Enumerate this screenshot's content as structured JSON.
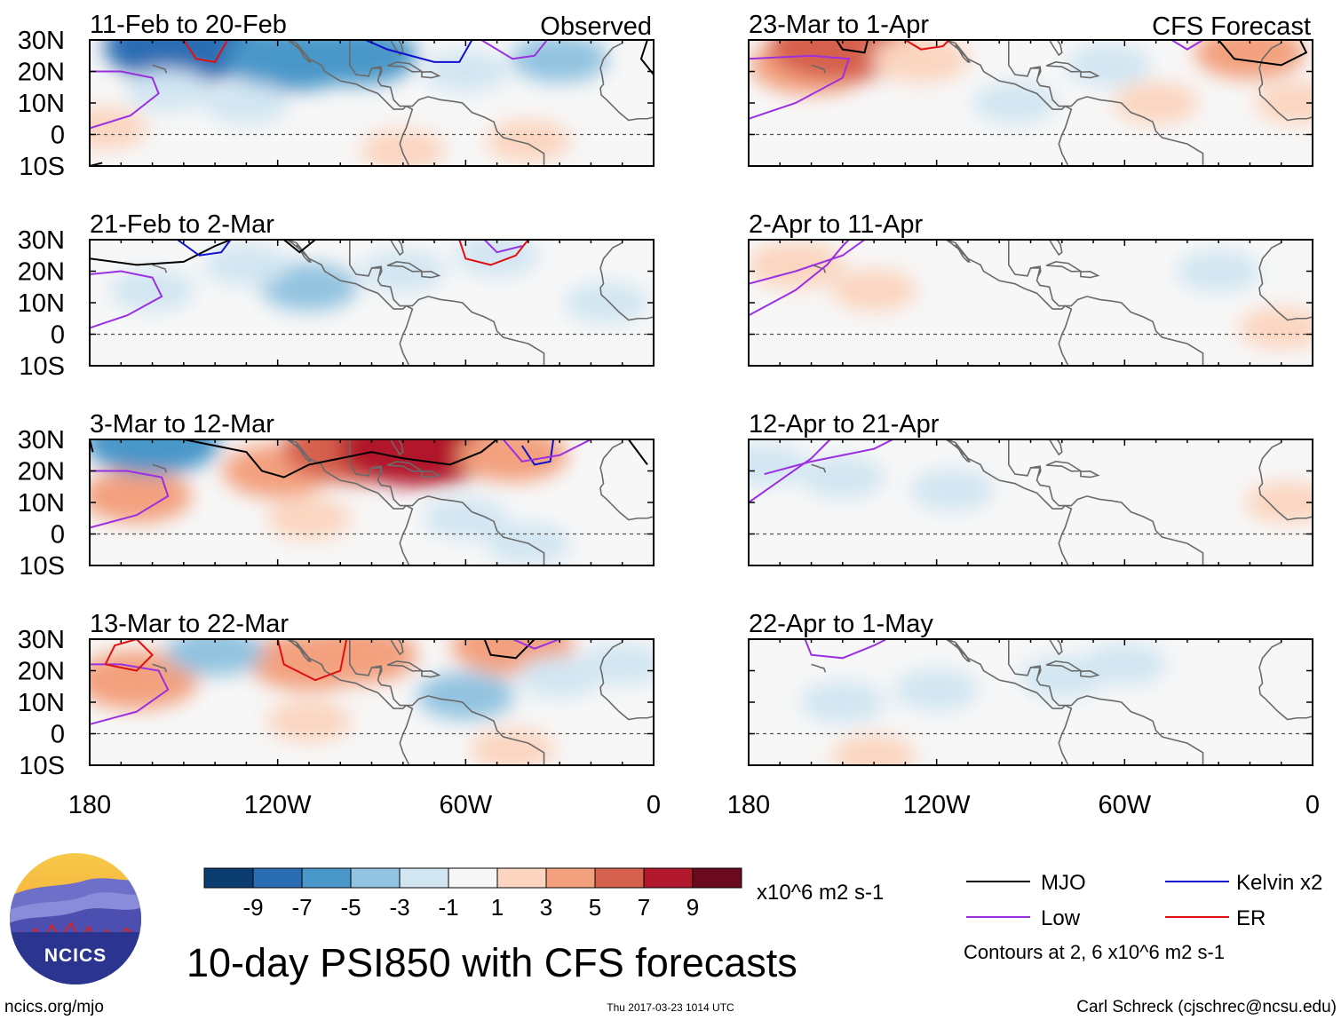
{
  "title": "10-day PSI850 with CFS forecasts",
  "left_column_label": "Observed",
  "right_column_label": "CFS Forecast",
  "lat_ticks": [
    "30N",
    "20N",
    "10N",
    "0",
    "10S"
  ],
  "lon_ticks": [
    "180",
    "120W",
    "60W",
    "0"
  ],
  "colorbar": {
    "unit": "x10^6 m2 s-1",
    "labels": [
      "-9",
      "-7",
      "-5",
      "-3",
      "-1",
      "1",
      "3",
      "5",
      "7",
      "9"
    ],
    "colors": [
      "#0b3d70",
      "#2b6db3",
      "#4a97c9",
      "#92c3e0",
      "#d2e6f2",
      "#f7f7f7",
      "#fbd5c0",
      "#f3a07e",
      "#d5604d",
      "#b2182b",
      "#6b0a1f"
    ]
  },
  "legend": {
    "items": [
      {
        "label": "MJO",
        "color": "#000000"
      },
      {
        "label": "Kelvin x2",
        "color": "#1010d0"
      },
      {
        "label": "Low",
        "color": "#9b30e0"
      },
      {
        "label": "ER",
        "color": "#e01010"
      }
    ],
    "note": "Contours at 2, 6 x10^6 m2 s-1"
  },
  "footer": {
    "logo_text": "NCICS",
    "url": "ncics.org/mjo",
    "timestamp": "Thu 2017-03-23 1014 UTC",
    "credit": "Carl Schreck (cjschrec@ncsu.edu)"
  },
  "chart_data": [
    {
      "type": "heatmap",
      "column": "Observed",
      "title": "11-Feb to 20-Feb",
      "xlim": [
        -180,
        0
      ],
      "ylim": [
        -10,
        30
      ],
      "blobs": [
        {
          "lon": -150,
          "lat": 28,
          "value": -8
        },
        {
          "lon": -115,
          "lat": 24,
          "value": -6
        },
        {
          "lon": -95,
          "lat": 25,
          "value": -5
        },
        {
          "lon": -130,
          "lat": 10,
          "value": -2
        },
        {
          "lon": -60,
          "lat": 20,
          "value": -2
        },
        {
          "lon": -30,
          "lat": 24,
          "value": -3
        },
        {
          "lon": -155,
          "lat": 14,
          "value": -2
        },
        {
          "lon": -175,
          "lat": 2,
          "value": 2
        },
        {
          "lon": -40,
          "lat": -2,
          "value": 2
        },
        {
          "lon": -80,
          "lat": -5,
          "value": 2
        }
      ]
    },
    {
      "type": "heatmap",
      "column": "Observed",
      "title": "21-Feb to 2-Mar",
      "xlim": [
        -180,
        0
      ],
      "ylim": [
        -10,
        30
      ],
      "blobs": [
        {
          "lon": -110,
          "lat": 15,
          "value": -3
        },
        {
          "lon": -130,
          "lat": 22,
          "value": -2
        },
        {
          "lon": -80,
          "lat": 20,
          "value": -2
        },
        {
          "lon": -50,
          "lat": 25,
          "value": -2
        },
        {
          "lon": -160,
          "lat": 14,
          "value": -2
        },
        {
          "lon": -15,
          "lat": 10,
          "value": -2
        }
      ]
    },
    {
      "type": "heatmap",
      "column": "Observed",
      "title": "3-Mar to 12-Mar",
      "xlim": [
        -180,
        0
      ],
      "ylim": [
        -10,
        30
      ],
      "blobs": [
        {
          "lon": -165,
          "lat": 12,
          "value": 4
        },
        {
          "lon": -120,
          "lat": 20,
          "value": 4
        },
        {
          "lon": -95,
          "lat": 27,
          "value": 7
        },
        {
          "lon": -75,
          "lat": 27,
          "value": 8
        },
        {
          "lon": -45,
          "lat": 25,
          "value": 4
        },
        {
          "lon": -160,
          "lat": 29,
          "value": -6
        },
        {
          "lon": -60,
          "lat": 5,
          "value": -2
        },
        {
          "lon": -40,
          "lat": -3,
          "value": -2
        },
        {
          "lon": -110,
          "lat": 5,
          "value": 2
        }
      ]
    },
    {
      "type": "heatmap",
      "column": "Observed",
      "title": "13-Mar to 22-Mar",
      "xlim": [
        -180,
        0
      ],
      "ylim": [
        -10,
        30
      ],
      "blobs": [
        {
          "lon": -165,
          "lat": 17,
          "value": 5
        },
        {
          "lon": -110,
          "lat": 23,
          "value": 5
        },
        {
          "lon": -95,
          "lat": 25,
          "value": 5
        },
        {
          "lon": -45,
          "lat": 28,
          "value": 5
        },
        {
          "lon": -140,
          "lat": 26,
          "value": -3
        },
        {
          "lon": -60,
          "lat": 12,
          "value": -3
        },
        {
          "lon": -30,
          "lat": 18,
          "value": -2
        },
        {
          "lon": -10,
          "lat": 22,
          "value": -2
        },
        {
          "lon": -45,
          "lat": -5,
          "value": 2
        },
        {
          "lon": -110,
          "lat": 4,
          "value": 2
        }
      ]
    },
    {
      "type": "heatmap",
      "column": "CFS Forecast",
      "title": "23-Mar to 1-Apr",
      "xlim": [
        -180,
        0
      ],
      "ylim": [
        -10,
        30
      ],
      "blobs": [
        {
          "lon": -160,
          "lat": 22,
          "value": 5
        },
        {
          "lon": -150,
          "lat": 28,
          "value": 7
        },
        {
          "lon": -125,
          "lat": 24,
          "value": 3
        },
        {
          "lon": -20,
          "lat": 26,
          "value": 4
        },
        {
          "lon": -65,
          "lat": 22,
          "value": -2
        },
        {
          "lon": -95,
          "lat": 10,
          "value": -2
        },
        {
          "lon": -50,
          "lat": 10,
          "value": 2
        },
        {
          "lon": -5,
          "lat": 10,
          "value": 2
        }
      ]
    },
    {
      "type": "heatmap",
      "column": "CFS Forecast",
      "title": "2-Apr to 11-Apr",
      "xlim": [
        -180,
        0
      ],
      "ylim": [
        -10,
        30
      ],
      "blobs": [
        {
          "lon": -165,
          "lat": 22,
          "value": 3
        },
        {
          "lon": -140,
          "lat": 14,
          "value": 2
        },
        {
          "lon": -10,
          "lat": 2,
          "value": 2
        },
        {
          "lon": -30,
          "lat": 20,
          "value": -2
        }
      ]
    },
    {
      "type": "heatmap",
      "column": "CFS Forecast",
      "title": "12-Apr to 21-Apr",
      "xlim": [
        -180,
        0
      ],
      "ylim": [
        -10,
        30
      ],
      "blobs": [
        {
          "lon": -150,
          "lat": 18,
          "value": -2
        },
        {
          "lon": -115,
          "lat": 14,
          "value": -2
        },
        {
          "lon": -175,
          "lat": 22,
          "value": -2
        },
        {
          "lon": -8,
          "lat": 10,
          "value": 2
        }
      ]
    },
    {
      "type": "heatmap",
      "column": "CFS Forecast",
      "title": "22-Apr to 1-May",
      "xlim": [
        -180,
        0
      ],
      "ylim": [
        -10,
        30
      ],
      "blobs": [
        {
          "lon": -120,
          "lat": 14,
          "value": -2
        },
        {
          "lon": -80,
          "lat": 18,
          "value": -2
        },
        {
          "lon": -150,
          "lat": 10,
          "value": -2
        },
        {
          "lon": -60,
          "lat": 22,
          "value": -2
        },
        {
          "lon": -140,
          "lat": -7,
          "value": 2
        }
      ]
    }
  ]
}
